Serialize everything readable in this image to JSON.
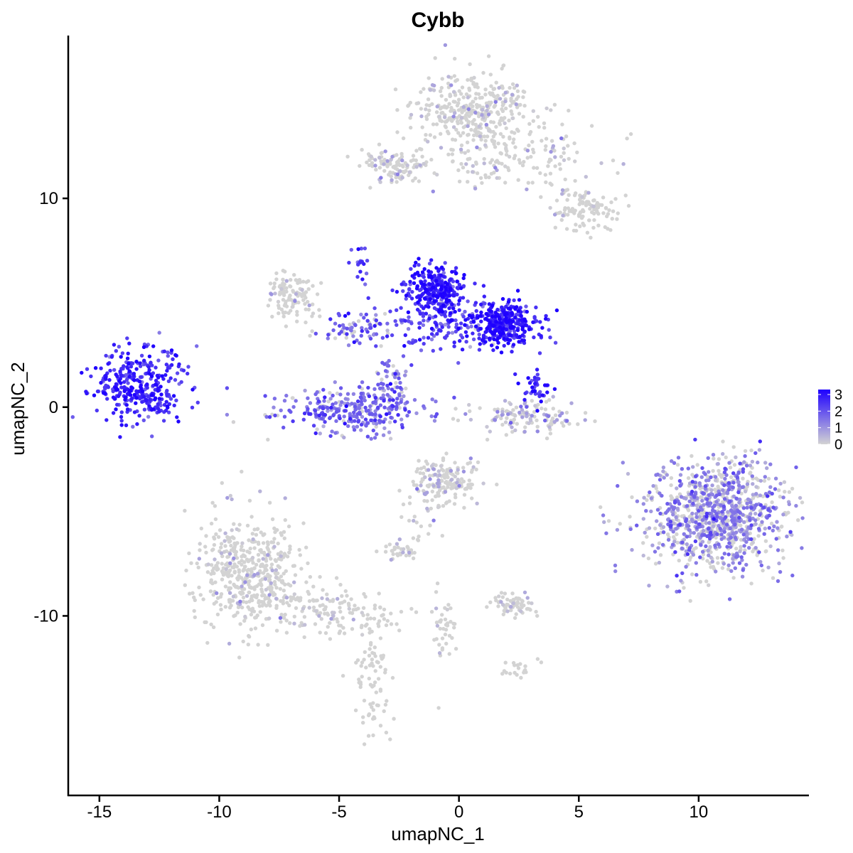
{
  "chart_data": {
    "type": "scatter",
    "title": "Cybb",
    "xlabel": "umapNC_1",
    "ylabel": "umapNC_2",
    "xlim": [
      -16.3,
      14.6
    ],
    "ylim": [
      -18.6,
      17.8
    ],
    "x_ticks": [
      {
        "value": -15,
        "label": "-15"
      },
      {
        "value": -10,
        "label": "-10"
      },
      {
        "value": -5,
        "label": "-5"
      },
      {
        "value": 0,
        "label": "0"
      },
      {
        "value": 5,
        "label": "5"
      },
      {
        "value": 10,
        "label": "10"
      }
    ],
    "y_ticks": [
      {
        "value": 10,
        "label": "10"
      },
      {
        "value": 0,
        "label": "0"
      },
      {
        "value": -10,
        "label": "-10"
      }
    ],
    "grid": false,
    "legend": {
      "position": "right",
      "type": "colorbar",
      "low_color": "#d3d3d3",
      "high_color": "#1e00ff",
      "ticks": [
        {
          "value": 0,
          "label": "0"
        },
        {
          "value": 1,
          "label": "1"
        },
        {
          "value": 2,
          "label": "2"
        },
        {
          "value": 3,
          "label": "3"
        }
      ],
      "range": [
        0,
        3.3
      ]
    },
    "clusters": [
      {
        "cx": 0.7,
        "cy": 14.2,
        "sx": 1.3,
        "sy": 0.9,
        "n": 380,
        "expr": 0.1
      },
      {
        "cx": 2.2,
        "cy": 11.8,
        "sx": 1.6,
        "sy": 0.8,
        "n": 130,
        "expr": 0.15
      },
      {
        "cx": -2.6,
        "cy": 11.5,
        "sx": 0.7,
        "sy": 0.45,
        "n": 110,
        "expr": 0.2
      },
      {
        "cx": 5.3,
        "cy": 9.5,
        "sx": 0.8,
        "sy": 0.5,
        "n": 110,
        "expr": 0.05
      },
      {
        "cx": -7.0,
        "cy": 5.4,
        "sx": 0.55,
        "sy": 0.55,
        "n": 110,
        "expr": 0.1
      },
      {
        "cx": -13.3,
        "cy": 1.0,
        "sx": 0.95,
        "sy": 0.8,
        "n": 330,
        "expr": 2.6
      },
      {
        "cx": -1.0,
        "cy": 5.6,
        "sx": 0.6,
        "sy": 0.55,
        "n": 280,
        "expr": 2.8
      },
      {
        "cx": 1.9,
        "cy": 4.0,
        "sx": 0.75,
        "sy": 0.5,
        "n": 300,
        "expr": 2.9
      },
      {
        "cx": -0.5,
        "cy": 3.8,
        "sx": 1.6,
        "sy": 0.6,
        "n": 170,
        "expr": 2.2
      },
      {
        "cx": -4.3,
        "cy": 3.8,
        "sx": 0.9,
        "sy": 0.35,
        "n": 70,
        "expr": 1.6
      },
      {
        "cx": -4.4,
        "cy": -0.2,
        "sx": 1.5,
        "sy": 0.55,
        "n": 300,
        "expr": 1.7
      },
      {
        "cx": -2.8,
        "cy": 1.2,
        "sx": 0.4,
        "sy": 0.5,
        "n": 50,
        "expr": 1.7
      },
      {
        "cx": 2.8,
        "cy": -0.5,
        "sx": 1.2,
        "sy": 0.4,
        "n": 130,
        "expr": 0.6
      },
      {
        "cx": 3.2,
        "cy": 0.9,
        "sx": 0.3,
        "sy": 0.35,
        "n": 40,
        "expr": 2.6
      },
      {
        "cx": 10.7,
        "cy": -5.2,
        "sx": 1.5,
        "sy": 1.3,
        "n": 1000,
        "expr": 1.2
      },
      {
        "cx": -0.5,
        "cy": -3.6,
        "sx": 0.6,
        "sy": 0.55,
        "n": 170,
        "expr": 0.25
      },
      {
        "cx": -8.6,
        "cy": -8.0,
        "sx": 1.1,
        "sy": 1.3,
        "n": 500,
        "expr": 0.02
      },
      {
        "cx": -5.3,
        "cy": -9.8,
        "sx": 1.4,
        "sy": 0.5,
        "n": 130,
        "expr": 0.02
      },
      {
        "cx": -3.6,
        "cy": -13.2,
        "sx": 0.4,
        "sy": 1.5,
        "n": 80,
        "expr": 0.0
      },
      {
        "cx": 2.3,
        "cy": -9.5,
        "sx": 0.5,
        "sy": 0.3,
        "n": 70,
        "expr": 0.1
      },
      {
        "cx": 2.5,
        "cy": -12.5,
        "sx": 0.3,
        "sy": 0.25,
        "n": 20,
        "expr": 0.0
      },
      {
        "cx": -2.5,
        "cy": -6.9,
        "sx": 0.35,
        "sy": 0.25,
        "n": 30,
        "expr": 0.2
      },
      {
        "cx": -0.6,
        "cy": -10.5,
        "sx": 0.25,
        "sy": 1.2,
        "n": 40,
        "expr": 0.05
      },
      {
        "cx": -1.8,
        "cy": -5.5,
        "sx": 0.5,
        "sy": 0.9,
        "n": 25,
        "expr": 0.3
      },
      {
        "cx": -4.2,
        "cy": 6.8,
        "sx": 0.25,
        "sy": 0.4,
        "n": 20,
        "expr": 2.3
      },
      {
        "cx": -11.9,
        "cy": 2.6,
        "sx": 0.2,
        "sy": 0.2,
        "n": 8,
        "expr": 2.5
      },
      {
        "cx": -12.5,
        "cy": 0.0,
        "sx": 0.2,
        "sy": 0.15,
        "n": 10,
        "expr": 2.5
      }
    ]
  }
}
